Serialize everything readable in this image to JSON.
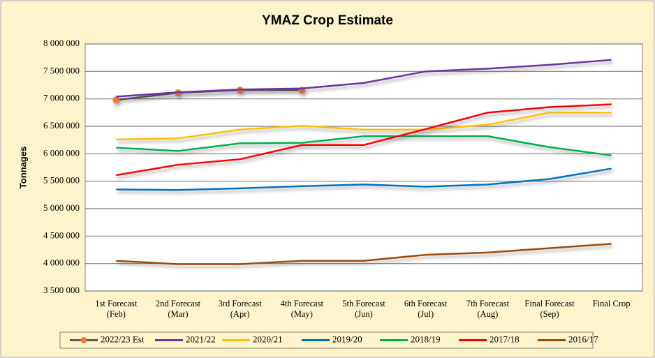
{
  "chart_data": {
    "type": "line",
    "title": "YMAZ Crop Estimate",
    "y_label": "Tonnages",
    "categories": [
      "1st Forecast\n(Feb)",
      "2nd Forecast\n(Mar)",
      "3rd Forecast\n(Apr)",
      "4th Forecast\n(May)",
      "5th Forecast\n(Jun)",
      "6th Forecast\n(Jul)",
      "7th Forecast\n(Aug)",
      "Final Forecast\n(Sep)",
      "Final Crop"
    ],
    "ylim": [
      3500000,
      8000000
    ],
    "yticks": [
      {
        "value": 3500000,
        "label": "3 500 000"
      },
      {
        "value": 4000000,
        "label": "4 000 000"
      },
      {
        "value": 4500000,
        "label": "4 500 000"
      },
      {
        "value": 5000000,
        "label": "5 000 000"
      },
      {
        "value": 5500000,
        "label": "5 500 000"
      },
      {
        "value": 6000000,
        "label": "6 000 000"
      },
      {
        "value": 6500000,
        "label": "6 500 000"
      },
      {
        "value": 7000000,
        "label": "7 000 000"
      },
      {
        "value": 7500000,
        "label": "7 500 000"
      },
      {
        "value": 8000000,
        "label": "8 000 000"
      }
    ],
    "grid": true,
    "legend": "bottom",
    "series": [
      {
        "name": "2022/23 Est",
        "color": "#595959",
        "marker_color": "#ed7d31",
        "values": [
          6980000,
          7110000,
          7160000,
          7160000,
          null,
          null,
          null,
          null,
          null
        ]
      },
      {
        "name": "2021/22",
        "color": "#7030a0",
        "values": [
          7040000,
          7120000,
          7170000,
          7190000,
          7290000,
          7500000,
          7550000,
          7620000,
          7710000
        ]
      },
      {
        "name": "2020/21",
        "color": "#ffc000",
        "values": [
          6260000,
          6280000,
          6440000,
          6510000,
          6440000,
          6440000,
          6530000,
          6750000,
          6750000
        ]
      },
      {
        "name": "2019/20",
        "color": "#0070c0",
        "values": [
          5350000,
          5340000,
          5370000,
          5410000,
          5440000,
          5400000,
          5440000,
          5540000,
          5730000
        ]
      },
      {
        "name": "2018/19",
        "color": "#00b050",
        "values": [
          6110000,
          6050000,
          6190000,
          6200000,
          6320000,
          6320000,
          6320000,
          6120000,
          5970000
        ]
      },
      {
        "name": "2017/18",
        "color": "#ff0000",
        "values": [
          5610000,
          5800000,
          5900000,
          6160000,
          6160000,
          6450000,
          6750000,
          6850000,
          6900000
        ]
      },
      {
        "name": "2016/17",
        "color": "#9c4a0c",
        "values": [
          4050000,
          3990000,
          3990000,
          4050000,
          4050000,
          4160000,
          4200000,
          4280000,
          4360000
        ]
      }
    ]
  }
}
